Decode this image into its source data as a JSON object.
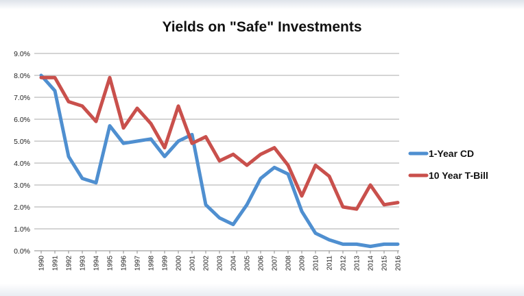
{
  "chart_data": {
    "type": "line",
    "title": "Yields on \"Safe\" Investments",
    "xlabel": "",
    "ylabel": "",
    "x": [
      "1990",
      "1991",
      "1992",
      "1993",
      "1994",
      "1995",
      "1996",
      "1997",
      "1998",
      "1999",
      "2000",
      "2001",
      "2002",
      "2003",
      "2004",
      "2005",
      "2006",
      "2007",
      "2008",
      "2009",
      "2010",
      "2011",
      "2012",
      "2013",
      "2014",
      "2015",
      "2016"
    ],
    "y_ticks": [
      "0.0%",
      "1.0%",
      "2.0%",
      "3.0%",
      "4.0%",
      "5.0%",
      "6.0%",
      "7.0%",
      "8.0%",
      "9.0%"
    ],
    "ylim": [
      0,
      9
    ],
    "grid": true,
    "legend_position": "right",
    "series": [
      {
        "name": "1-Year CD",
        "color": "#4f8fd0",
        "values": [
          8.0,
          7.3,
          4.3,
          3.3,
          3.1,
          5.7,
          4.9,
          5.0,
          5.1,
          4.3,
          5.0,
          5.3,
          2.1,
          1.5,
          1.2,
          2.1,
          3.3,
          3.8,
          3.5,
          1.8,
          0.8,
          0.5,
          0.3,
          0.3,
          0.2,
          0.3,
          0.3
        ]
      },
      {
        "name": "10 Year T-Bill",
        "color": "#c9504c",
        "values": [
          7.9,
          7.9,
          6.8,
          6.6,
          5.9,
          7.9,
          5.6,
          6.5,
          5.8,
          4.7,
          6.6,
          4.9,
          5.2,
          4.1,
          4.4,
          3.9,
          4.4,
          4.7,
          3.9,
          2.5,
          3.9,
          3.4,
          2.0,
          1.9,
          3.0,
          2.1,
          2.2
        ]
      }
    ]
  }
}
